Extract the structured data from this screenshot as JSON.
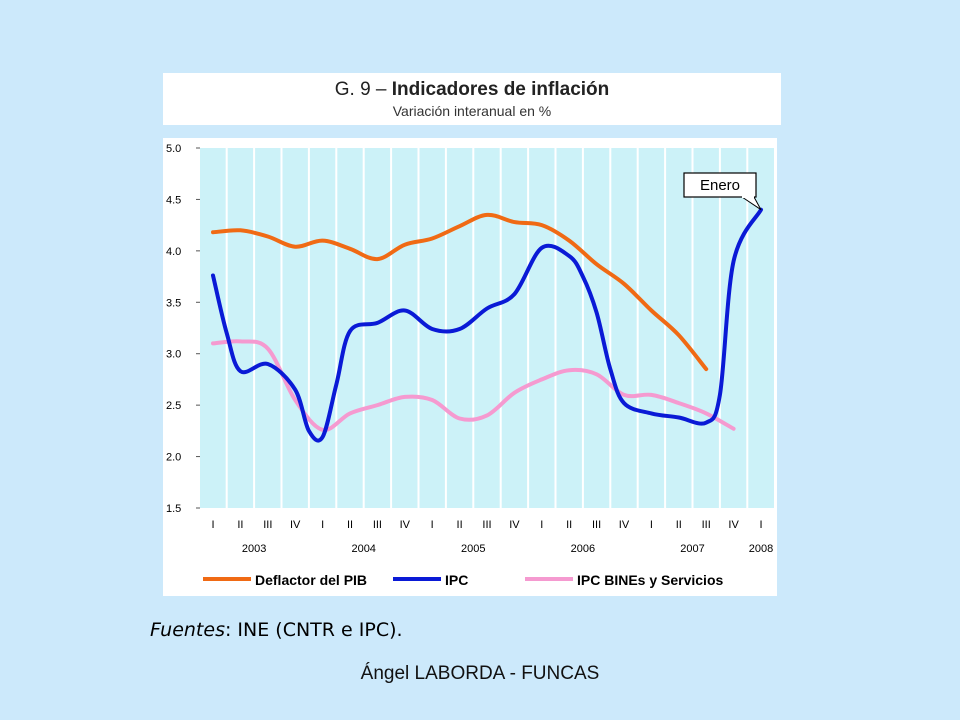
{
  "title": {
    "prefix": "G. 9 – ",
    "bold": "Indicadores de inflación",
    "subtitle": "Variación interanual en %"
  },
  "source": {
    "label": "Fuentes",
    "text": ": INE (CNTR e IPC)."
  },
  "footer": "Ángel LABORDA - FUNCAS",
  "colors": {
    "plot_bg": "#ccf2f8",
    "deflactor": "#f06a14",
    "ipc": "#0a1ad6",
    "bines": "#f59ad0",
    "page_bg": "#cce9fb"
  },
  "chart_data": {
    "type": "line",
    "ylim": [
      1.5,
      5.0
    ],
    "yticks": [
      "5.0",
      "4.5",
      "4.0",
      "3.5",
      "3.0",
      "2.5",
      "2.0",
      "1.5"
    ],
    "categories": [
      "I",
      "II",
      "III",
      "IV",
      "I",
      "II",
      "III",
      "IV",
      "I",
      "II",
      "III",
      "IV",
      "I",
      "II",
      "III",
      "IV",
      "I",
      "II",
      "III",
      "IV",
      "I"
    ],
    "years": [
      {
        "label": "2003",
        "start": 0,
        "end": 3
      },
      {
        "label": "2004",
        "start": 4,
        "end": 7
      },
      {
        "label": "2005",
        "start": 8,
        "end": 11
      },
      {
        "label": "2006",
        "start": 12,
        "end": 15
      },
      {
        "label": "2007",
        "start": 16,
        "end": 19
      },
      {
        "label": "2008",
        "start": 20,
        "end": 20
      }
    ],
    "grid": "vertical",
    "legend_position": "bottom",
    "series": [
      {
        "name": "Deflactor del PIB",
        "key": "deflactor",
        "points": [
          [
            0,
            4.18
          ],
          [
            1,
            4.2
          ],
          [
            2,
            4.14
          ],
          [
            3,
            4.04
          ],
          [
            4,
            4.1
          ],
          [
            5,
            4.02
          ],
          [
            6,
            3.92
          ],
          [
            7,
            4.06
          ],
          [
            8,
            4.12
          ],
          [
            9,
            4.24
          ],
          [
            10,
            4.35
          ],
          [
            11,
            4.28
          ],
          [
            12,
            4.25
          ],
          [
            13,
            4.1
          ],
          [
            14,
            3.87
          ],
          [
            15,
            3.68
          ],
          [
            16,
            3.42
          ],
          [
            17,
            3.18
          ],
          [
            18,
            2.85
          ]
        ]
      },
      {
        "name": "IPC",
        "key": "ipc",
        "points": [
          [
            0,
            3.76
          ],
          [
            0.5,
            3.2
          ],
          [
            1,
            2.83
          ],
          [
            2,
            2.9
          ],
          [
            3,
            2.65
          ],
          [
            3.5,
            2.25
          ],
          [
            4,
            2.19
          ],
          [
            4.5,
            2.7
          ],
          [
            5,
            3.22
          ],
          [
            6,
            3.3
          ],
          [
            7,
            3.42
          ],
          [
            8,
            3.24
          ],
          [
            9,
            3.24
          ],
          [
            10,
            3.44
          ],
          [
            11,
            3.58
          ],
          [
            12,
            4.03
          ],
          [
            13,
            3.95
          ],
          [
            13.5,
            3.75
          ],
          [
            14,
            3.4
          ],
          [
            14.5,
            2.85
          ],
          [
            15,
            2.52
          ],
          [
            16,
            2.42
          ],
          [
            17,
            2.38
          ],
          [
            18,
            2.33
          ],
          [
            18.5,
            2.6
          ],
          [
            19,
            3.9
          ],
          [
            20,
            4.4
          ]
        ]
      },
      {
        "name": "IPC BINEs y Servicios",
        "key": "bines",
        "points": [
          [
            0,
            3.1
          ],
          [
            1,
            3.12
          ],
          [
            2,
            3.05
          ],
          [
            3,
            2.55
          ],
          [
            4,
            2.26
          ],
          [
            5,
            2.42
          ],
          [
            6,
            2.5
          ],
          [
            7,
            2.58
          ],
          [
            8,
            2.55
          ],
          [
            9,
            2.37
          ],
          [
            10,
            2.4
          ],
          [
            11,
            2.62
          ],
          [
            12,
            2.75
          ],
          [
            13,
            2.84
          ],
          [
            14,
            2.8
          ],
          [
            15,
            2.6
          ],
          [
            16,
            2.6
          ],
          [
            17,
            2.52
          ],
          [
            18,
            2.42
          ],
          [
            19,
            2.27
          ]
        ]
      }
    ],
    "annotation": {
      "text": "Enero",
      "index": 20,
      "value": 4.4
    }
  }
}
